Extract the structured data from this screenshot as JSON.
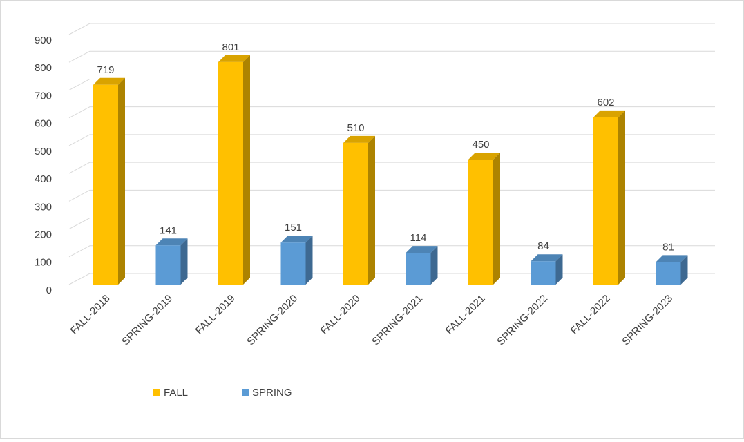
{
  "chart_data": {
    "type": "bar3d",
    "categories": [
      "FALL-2018",
      "SPRING-2019",
      "FALL-2019",
      "SPRING-2020",
      "FALL-2020",
      "SPRING-2021",
      "FALL-2021",
      "SPRING-2022",
      "FALL-2022",
      "SPRING-2023"
    ],
    "series": [
      {
        "name": "FALL",
        "color": "#FFC000",
        "values": [
          719,
          null,
          801,
          null,
          510,
          null,
          450,
          null,
          602,
          null
        ]
      },
      {
        "name": "SPRING",
        "color": "#5B9BD5",
        "values": [
          null,
          141,
          null,
          151,
          null,
          114,
          null,
          84,
          null,
          81
        ]
      }
    ],
    "ylim": [
      0,
      900
    ],
    "yticks": [
      0,
      100,
      200,
      300,
      400,
      500,
      600,
      700,
      800,
      900
    ],
    "grid": true,
    "legend": "bottom"
  }
}
